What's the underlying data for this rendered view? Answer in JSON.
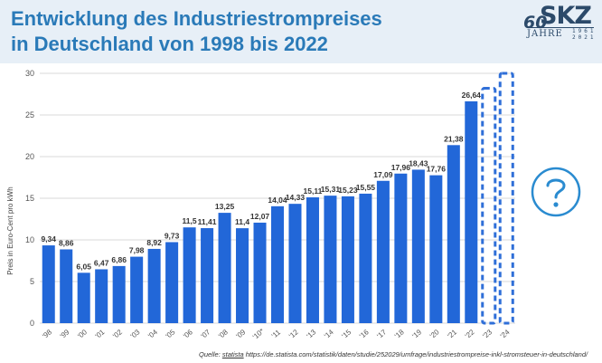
{
  "header": {
    "title_line1": "Entwicklung des Industriestrompreises",
    "title_line2": "in Deutschland von 1998 bis 2022",
    "logo": {
      "number": "60",
      "brand": "SKZ",
      "jahre": "JAHRE",
      "years_top": "1961",
      "years_bottom": "2021"
    }
  },
  "source": {
    "prefix": "Quelle:",
    "link_text": "statista",
    "url": "https://de.statista.com/statistik/daten/studie/252029/umfrage/industriestrompreise-inkl-stromsteuer-in-deutschland/"
  },
  "colors": {
    "bar": "#2267d8",
    "title": "#2a7ab8",
    "header_bg": "#e7eff7",
    "placeholder": "#2f6fd8",
    "question_icon": "#2a8bd0"
  },
  "icons": {
    "question": "question-mark-circle-icon"
  },
  "chart_data": {
    "type": "bar",
    "title": "",
    "xlabel": "",
    "ylabel": "Preis in Euro-Cent pro kWh",
    "ylim": [
      0,
      30
    ],
    "yticks": [
      0,
      5,
      10,
      15,
      20,
      25,
      30
    ],
    "grid": true,
    "categories": [
      "'98",
      "'99",
      "'00",
      "'01",
      "'02",
      "'03",
      "'04",
      "'05",
      "'06",
      "'07",
      "'08",
      "'09",
      "'10*",
      "'11",
      "'12",
      "'13",
      "'14",
      "'15",
      "'16",
      "'17",
      "'18",
      "'19",
      "'20",
      "'21",
      "'22",
      "'23",
      "'24"
    ],
    "values": [
      9.34,
      8.86,
      6.05,
      6.47,
      6.86,
      7.98,
      8.92,
      9.73,
      11.5,
      11.41,
      13.25,
      11.4,
      12.07,
      14.04,
      14.33,
      15.11,
      15.31,
      15.23,
      15.55,
      17.09,
      17.96,
      18.43,
      17.76,
      21.38,
      26.64,
      null,
      null
    ],
    "labels": [
      "9,34",
      "8,86",
      "6,05",
      "6,47",
      "6,86",
      "7,98",
      "8,92",
      "9,73",
      "11,5",
      "11,41",
      "13,25",
      "11,4",
      "12,07",
      "14,04",
      "14,33",
      "15,11",
      "15,31",
      "15,23",
      "15,55",
      "17,09",
      "17,96",
      "18,43",
      "17,76",
      "21,38",
      "26,64",
      "",
      ""
    ],
    "placeholder_categories": [
      "'23",
      "'24"
    ]
  }
}
